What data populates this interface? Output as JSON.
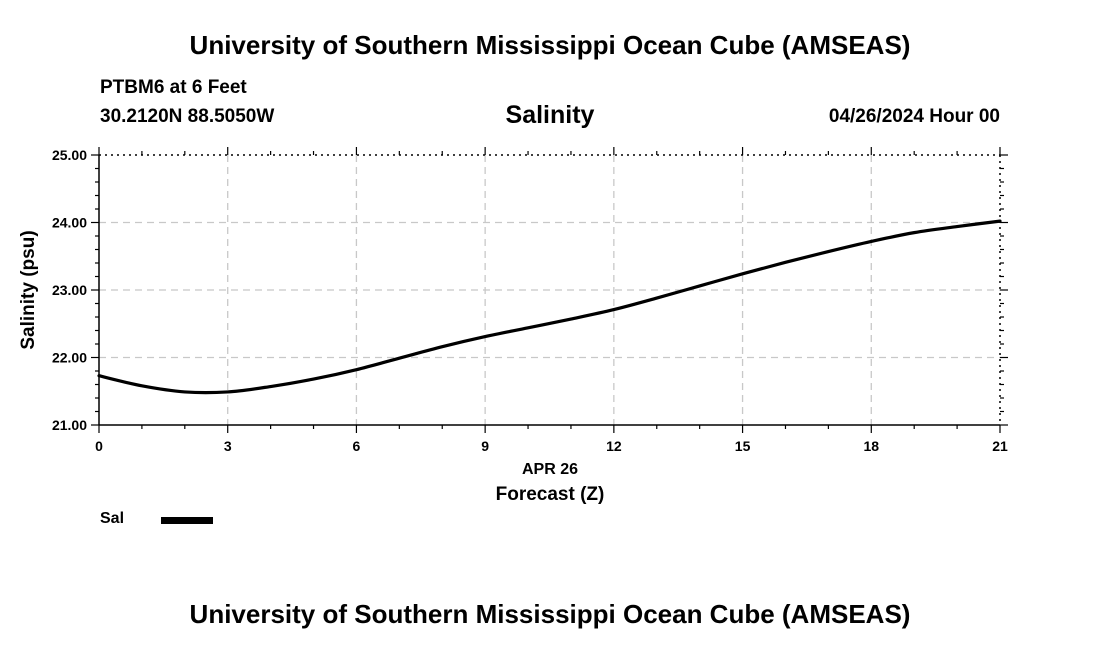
{
  "header": {
    "title": "University of Southern Mississippi Ocean Cube (AMSEAS)",
    "station": "PTBM6 at 6 Feet",
    "coordinates": "30.2120N  88.5050W",
    "datetime": "04/26/2024 Hour 00"
  },
  "footer": {
    "title": "University of Southern Mississippi Ocean Cube (AMSEAS)"
  },
  "legend": {
    "placement": "bottom-left",
    "entries": [
      {
        "label": "Sal",
        "color": "#000000"
      }
    ]
  },
  "chart_data": {
    "type": "line",
    "title": "Salinity",
    "xlabel": "Forecast (Z)",
    "x_sublabel": "APR 26",
    "ylabel": "Salinity (psu)",
    "xlim": [
      0,
      21
    ],
    "ylim": [
      21,
      25
    ],
    "x_ticks": [
      "0",
      "3",
      "6",
      "9",
      "12",
      "15",
      "18",
      "21"
    ],
    "y_ticks": [
      "21.00",
      "22.00",
      "23.00",
      "24.00",
      "25.00"
    ],
    "grid": true,
    "series": [
      {
        "name": "Sal",
        "color": "#000000",
        "x": [
          0,
          1,
          2,
          3,
          4,
          5,
          6,
          7,
          8,
          9,
          10,
          11,
          12,
          13,
          14,
          15,
          16,
          17,
          18,
          19,
          20,
          21
        ],
        "y": [
          21.73,
          21.58,
          21.49,
          21.49,
          21.57,
          21.68,
          21.82,
          21.99,
          22.16,
          22.31,
          22.44,
          22.57,
          22.71,
          22.88,
          23.06,
          23.24,
          23.41,
          23.57,
          23.72,
          23.85,
          23.94,
          24.02
        ]
      }
    ]
  }
}
